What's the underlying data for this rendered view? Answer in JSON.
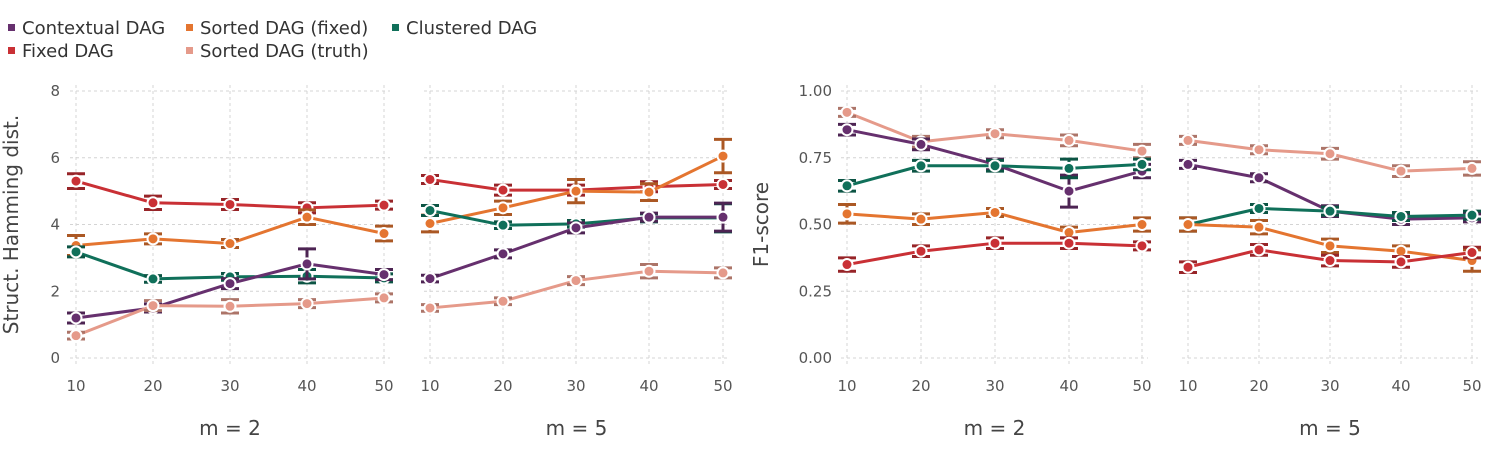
{
  "colors": {
    "Contextual DAG": "#66306E",
    "Fixed DAG": "#C93035",
    "Sorted DAG (fixed)": "#E47530",
    "Sorted DAG (truth)": "#E59A8A",
    "Clustered DAG": "#10705A"
  },
  "legend": {
    "items": [
      {
        "name": "Contextual DAG"
      },
      {
        "name": "Sorted DAG (fixed)"
      },
      {
        "name": "Clustered DAG"
      },
      {
        "name": "Fixed DAG"
      },
      {
        "name": "Sorted DAG (truth)"
      }
    ]
  },
  "chart_data": [
    {
      "type": "line",
      "title": "m = 2",
      "xlabel": "m = 2",
      "ylabel": "Struct. Hamming dist.",
      "x": [
        10,
        20,
        30,
        40,
        50
      ],
      "xticks": [
        "10",
        "20",
        "30",
        "40",
        "50"
      ],
      "ylim": [
        0,
        8
      ],
      "yticks": [
        "0",
        "2",
        "4",
        "6",
        "8"
      ],
      "ytick_values": [
        0,
        2,
        4,
        6,
        8
      ],
      "series": [
        {
          "name": "Fixed DAG",
          "values": [
            5.3,
            4.65,
            4.6,
            4.5,
            4.58
          ],
          "errors": [
            0.22,
            0.2,
            0.15,
            0.15,
            0.12
          ]
        },
        {
          "name": "Sorted DAG (fixed)",
          "values": [
            3.37,
            3.57,
            3.43,
            4.22,
            3.73
          ],
          "errors": [
            0.3,
            0.15,
            0.12,
            0.22,
            0.22
          ]
        },
        {
          "name": "Clustered DAG",
          "values": [
            3.18,
            2.37,
            2.43,
            2.45,
            2.4
          ],
          "errors": [
            0.15,
            0.1,
            0.1,
            0.2,
            0.12
          ]
        },
        {
          "name": "Contextual DAG",
          "values": [
            1.2,
            1.5,
            2.23,
            2.82,
            2.5
          ],
          "errors": [
            0.15,
            0.12,
            0.15,
            0.45,
            0.15
          ]
        },
        {
          "name": "Sorted DAG (truth)",
          "values": [
            0.67,
            1.57,
            1.55,
            1.63,
            1.8
          ],
          "errors": [
            0.1,
            0.15,
            0.2,
            0.12,
            0.12
          ]
        }
      ]
    },
    {
      "type": "line",
      "title": "m = 5",
      "xlabel": "m = 5",
      "ylabel": "",
      "x": [
        10,
        20,
        30,
        40,
        50
      ],
      "xticks": [
        "10",
        "20",
        "30",
        "40",
        "50"
      ],
      "ylim": [
        0,
        8
      ],
      "yticks": [],
      "ytick_values": [
        0,
        2,
        4,
        6,
        8
      ],
      "series": [
        {
          "name": "Fixed DAG",
          "values": [
            5.35,
            5.03,
            5.03,
            5.13,
            5.2
          ],
          "errors": [
            0.12,
            0.15,
            0.15,
            0.15,
            0.12
          ]
        },
        {
          "name": "Sorted DAG (fixed)",
          "values": [
            4.03,
            4.5,
            5.0,
            4.97,
            6.05
          ],
          "errors": [
            0.25,
            0.2,
            0.35,
            0.25,
            0.5
          ]
        },
        {
          "name": "Clustered DAG",
          "values": [
            4.42,
            3.98,
            4.02,
            4.2,
            4.2
          ],
          "errors": [
            0.15,
            0.1,
            0.1,
            0.12,
            0.42
          ]
        },
        {
          "name": "Contextual DAG",
          "values": [
            2.38,
            3.12,
            3.9,
            4.22,
            4.22
          ],
          "errors": [
            0.1,
            0.12,
            0.15,
            0.12,
            0.42
          ]
        },
        {
          "name": "Sorted DAG (truth)",
          "values": [
            1.5,
            1.7,
            2.32,
            2.6,
            2.55
          ],
          "errors": [
            0.1,
            0.1,
            0.12,
            0.2,
            0.15
          ]
        }
      ]
    },
    {
      "type": "line",
      "title": "m = 2",
      "xlabel": "m = 2",
      "ylabel": "F1-score",
      "x": [
        10,
        20,
        30,
        40,
        50
      ],
      "xticks": [
        "10",
        "20",
        "30",
        "40",
        "50"
      ],
      "ylim": [
        0,
        1
      ],
      "yticks": [
        "0.00",
        "0.25",
        "0.50",
        "0.75",
        "1.00"
      ],
      "ytick_values": [
        0,
        0.25,
        0.5,
        0.75,
        1.0
      ],
      "series": [
        {
          "name": "Sorted DAG (truth)",
          "values": [
            0.92,
            0.81,
            0.84,
            0.815,
            0.775
          ],
          "errors": [
            0.015,
            0.02,
            0.015,
            0.02,
            0.025
          ]
        },
        {
          "name": "Contextual DAG",
          "values": [
            0.855,
            0.8,
            0.725,
            0.625,
            0.7
          ],
          "errors": [
            0.02,
            0.02,
            0.02,
            0.06,
            0.025
          ]
        },
        {
          "name": "Clustered DAG",
          "values": [
            0.645,
            0.72,
            0.72,
            0.71,
            0.725
          ],
          "errors": [
            0.02,
            0.02,
            0.02,
            0.035,
            0.02
          ]
        },
        {
          "name": "Sorted DAG (fixed)",
          "values": [
            0.54,
            0.52,
            0.545,
            0.47,
            0.5
          ],
          "errors": [
            0.035,
            0.02,
            0.015,
            0.02,
            0.025
          ]
        },
        {
          "name": "Fixed DAG",
          "values": [
            0.35,
            0.4,
            0.43,
            0.43,
            0.42
          ],
          "errors": [
            0.025,
            0.02,
            0.02,
            0.02,
            0.015
          ]
        }
      ]
    },
    {
      "type": "line",
      "title": "m = 5",
      "xlabel": "m = 5",
      "ylabel": "",
      "x": [
        10,
        20,
        30,
        40,
        50
      ],
      "xticks": [
        "10",
        "20",
        "30",
        "40",
        "50"
      ],
      "ylim": [
        0,
        1
      ],
      "yticks": [],
      "ytick_values": [
        0,
        0.25,
        0.5,
        0.75,
        1.0
      ],
      "series": [
        {
          "name": "Sorted DAG (truth)",
          "values": [
            0.815,
            0.78,
            0.765,
            0.7,
            0.71
          ],
          "errors": [
            0.015,
            0.015,
            0.02,
            0.02,
            0.025
          ]
        },
        {
          "name": "Contextual DAG",
          "values": [
            0.725,
            0.675,
            0.55,
            0.52,
            0.525
          ],
          "errors": [
            0.015,
            0.015,
            0.02,
            0.02,
            0.015
          ]
        },
        {
          "name": "Clustered DAG",
          "values": [
            0.5,
            0.56,
            0.55,
            0.53,
            0.535
          ],
          "errors": [
            0.025,
            0.015,
            0.015,
            0.015,
            0.015
          ]
        },
        {
          "name": "Sorted DAG (fixed)",
          "values": [
            0.5,
            0.49,
            0.42,
            0.4,
            0.365
          ],
          "errors": [
            0.025,
            0.025,
            0.025,
            0.02,
            0.04
          ]
        },
        {
          "name": "Fixed DAG",
          "values": [
            0.34,
            0.405,
            0.365,
            0.36,
            0.395
          ],
          "errors": [
            0.02,
            0.02,
            0.02,
            0.02,
            0.02
          ]
        }
      ]
    }
  ]
}
